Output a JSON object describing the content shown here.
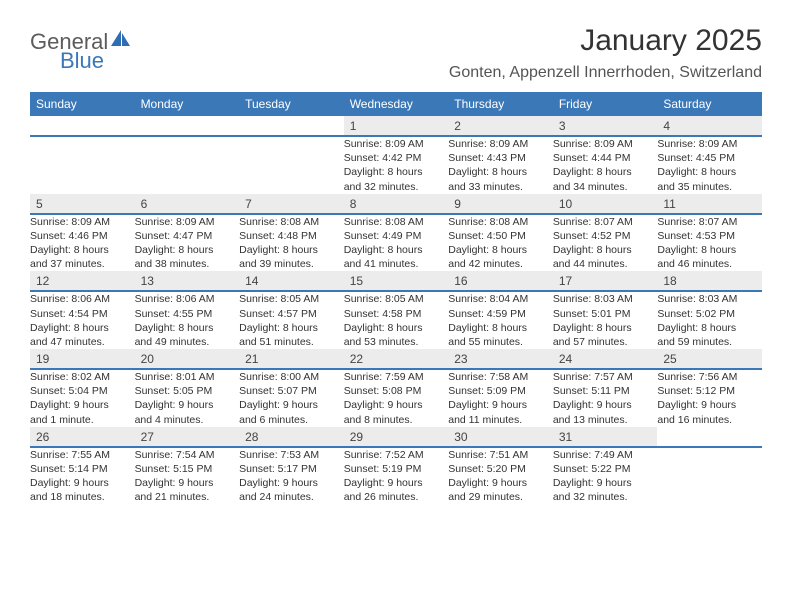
{
  "logo": {
    "part1": "General",
    "part2": "Blue"
  },
  "title": "January 2025",
  "location": "Gonten, Appenzell Innerrhoden, Switzerland",
  "colors": {
    "header_blue": "#3b78b8",
    "daybar_bg": "#ececec",
    "daybar_border": "#3b78b8",
    "text": "#333333",
    "logo_gray": "#5c5c5c",
    "logo_blue": "#3b78b8",
    "background": "#ffffff"
  },
  "dow": [
    "Sunday",
    "Monday",
    "Tuesday",
    "Wednesday",
    "Thursday",
    "Friday",
    "Saturday"
  ],
  "weeks": [
    [
      null,
      null,
      null,
      {
        "n": "1",
        "sunrise": "8:09 AM",
        "sunset": "4:42 PM",
        "day_h": "8",
        "day_m": "32 minutes"
      },
      {
        "n": "2",
        "sunrise": "8:09 AM",
        "sunset": "4:43 PM",
        "day_h": "8",
        "day_m": "33 minutes"
      },
      {
        "n": "3",
        "sunrise": "8:09 AM",
        "sunset": "4:44 PM",
        "day_h": "8",
        "day_m": "34 minutes"
      },
      {
        "n": "4",
        "sunrise": "8:09 AM",
        "sunset": "4:45 PM",
        "day_h": "8",
        "day_m": "35 minutes"
      }
    ],
    [
      {
        "n": "5",
        "sunrise": "8:09 AM",
        "sunset": "4:46 PM",
        "day_h": "8",
        "day_m": "37 minutes"
      },
      {
        "n": "6",
        "sunrise": "8:09 AM",
        "sunset": "4:47 PM",
        "day_h": "8",
        "day_m": "38 minutes"
      },
      {
        "n": "7",
        "sunrise": "8:08 AM",
        "sunset": "4:48 PM",
        "day_h": "8",
        "day_m": "39 minutes"
      },
      {
        "n": "8",
        "sunrise": "8:08 AM",
        "sunset": "4:49 PM",
        "day_h": "8",
        "day_m": "41 minutes"
      },
      {
        "n": "9",
        "sunrise": "8:08 AM",
        "sunset": "4:50 PM",
        "day_h": "8",
        "day_m": "42 minutes"
      },
      {
        "n": "10",
        "sunrise": "8:07 AM",
        "sunset": "4:52 PM",
        "day_h": "8",
        "day_m": "44 minutes"
      },
      {
        "n": "11",
        "sunrise": "8:07 AM",
        "sunset": "4:53 PM",
        "day_h": "8",
        "day_m": "46 minutes"
      }
    ],
    [
      {
        "n": "12",
        "sunrise": "8:06 AM",
        "sunset": "4:54 PM",
        "day_h": "8",
        "day_m": "47 minutes"
      },
      {
        "n": "13",
        "sunrise": "8:06 AM",
        "sunset": "4:55 PM",
        "day_h": "8",
        "day_m": "49 minutes"
      },
      {
        "n": "14",
        "sunrise": "8:05 AM",
        "sunset": "4:57 PM",
        "day_h": "8",
        "day_m": "51 minutes"
      },
      {
        "n": "15",
        "sunrise": "8:05 AM",
        "sunset": "4:58 PM",
        "day_h": "8",
        "day_m": "53 minutes"
      },
      {
        "n": "16",
        "sunrise": "8:04 AM",
        "sunset": "4:59 PM",
        "day_h": "8",
        "day_m": "55 minutes"
      },
      {
        "n": "17",
        "sunrise": "8:03 AM",
        "sunset": "5:01 PM",
        "day_h": "8",
        "day_m": "57 minutes"
      },
      {
        "n": "18",
        "sunrise": "8:03 AM",
        "sunset": "5:02 PM",
        "day_h": "8",
        "day_m": "59 minutes"
      }
    ],
    [
      {
        "n": "19",
        "sunrise": "8:02 AM",
        "sunset": "5:04 PM",
        "day_h": "9",
        "day_m": "1 minute"
      },
      {
        "n": "20",
        "sunrise": "8:01 AM",
        "sunset": "5:05 PM",
        "day_h": "9",
        "day_m": "4 minutes"
      },
      {
        "n": "21",
        "sunrise": "8:00 AM",
        "sunset": "5:07 PM",
        "day_h": "9",
        "day_m": "6 minutes"
      },
      {
        "n": "22",
        "sunrise": "7:59 AM",
        "sunset": "5:08 PM",
        "day_h": "9",
        "day_m": "8 minutes"
      },
      {
        "n": "23",
        "sunrise": "7:58 AM",
        "sunset": "5:09 PM",
        "day_h": "9",
        "day_m": "11 minutes"
      },
      {
        "n": "24",
        "sunrise": "7:57 AM",
        "sunset": "5:11 PM",
        "day_h": "9",
        "day_m": "13 minutes"
      },
      {
        "n": "25",
        "sunrise": "7:56 AM",
        "sunset": "5:12 PM",
        "day_h": "9",
        "day_m": "16 minutes"
      }
    ],
    [
      {
        "n": "26",
        "sunrise": "7:55 AM",
        "sunset": "5:14 PM",
        "day_h": "9",
        "day_m": "18 minutes"
      },
      {
        "n": "27",
        "sunrise": "7:54 AM",
        "sunset": "5:15 PM",
        "day_h": "9",
        "day_m": "21 minutes"
      },
      {
        "n": "28",
        "sunrise": "7:53 AM",
        "sunset": "5:17 PM",
        "day_h": "9",
        "day_m": "24 minutes"
      },
      {
        "n": "29",
        "sunrise": "7:52 AM",
        "sunset": "5:19 PM",
        "day_h": "9",
        "day_m": "26 minutes"
      },
      {
        "n": "30",
        "sunrise": "7:51 AM",
        "sunset": "5:20 PM",
        "day_h": "9",
        "day_m": "29 minutes"
      },
      {
        "n": "31",
        "sunrise": "7:49 AM",
        "sunset": "5:22 PM",
        "day_h": "9",
        "day_m": "32 minutes"
      },
      null
    ]
  ],
  "labels": {
    "sunrise": "Sunrise:",
    "sunset": "Sunset:",
    "daylight": "Daylight:",
    "hours": "hours",
    "and": "and"
  }
}
